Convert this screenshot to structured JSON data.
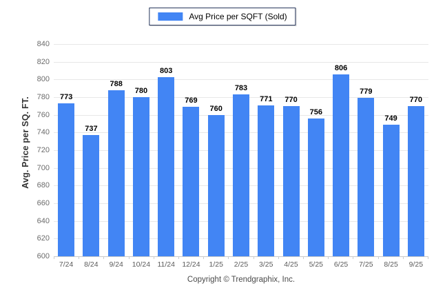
{
  "legend": {
    "label": "Avg Price per SQFT (Sold)",
    "swatch_color": "#4285f4"
  },
  "y_axis_title": "Avg. Price per SQ. FT.",
  "footer_text": "Copyright © Trendgraphix, Inc.",
  "chart_data": {
    "type": "bar",
    "title": "Avg Price per SQFT (Sold)",
    "categories": [
      "7/24",
      "8/24",
      "9/24",
      "10/24",
      "11/24",
      "12/24",
      "1/25",
      "2/25",
      "3/25",
      "4/25",
      "5/25",
      "6/25",
      "7/25",
      "8/25",
      "9/25"
    ],
    "values": [
      773,
      737,
      788,
      780,
      803,
      769,
      760,
      783,
      771,
      770,
      756,
      806,
      779,
      749,
      770
    ],
    "xlabel": "",
    "ylabel": "Avg. Price per SQ. FT.",
    "ylim": [
      600,
      840
    ],
    "ytick_step": 20,
    "grid": true,
    "legend_position": "top-center",
    "bar_color": "#4285f4",
    "data_labels": true
  }
}
